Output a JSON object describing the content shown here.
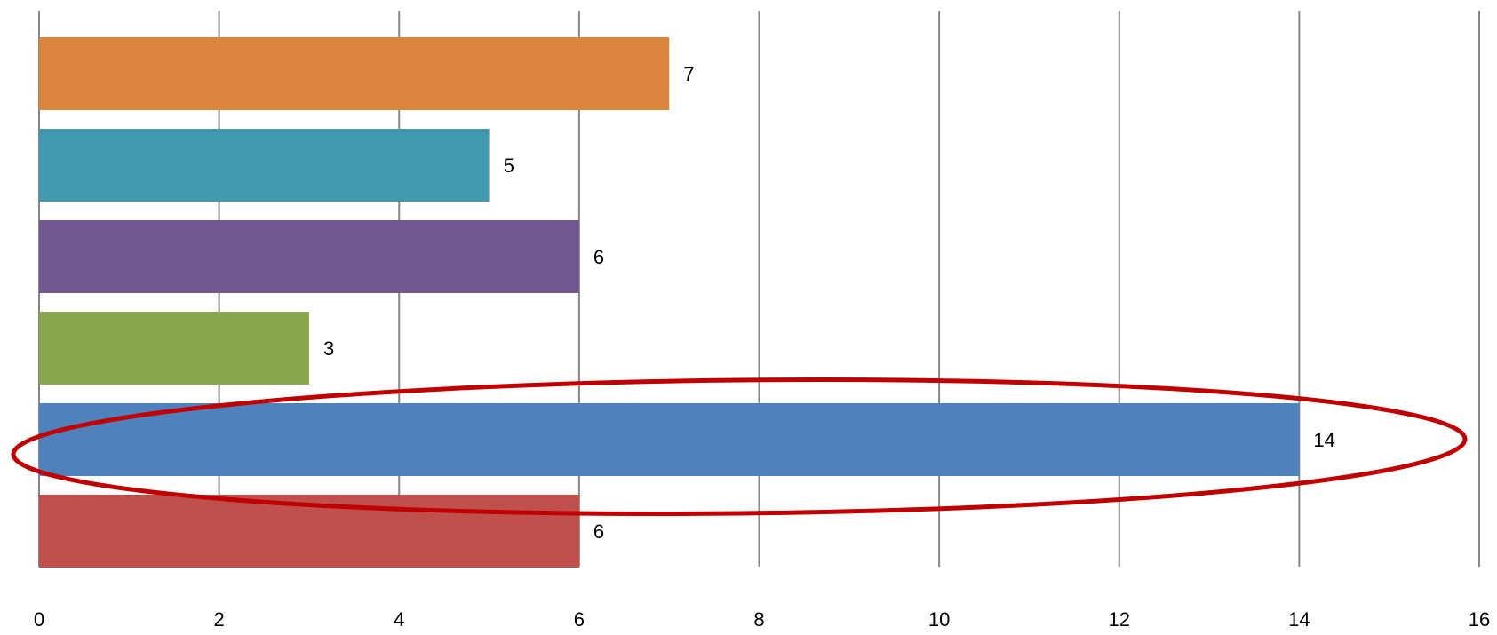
{
  "chart_data": {
    "type": "bar",
    "orientation": "horizontal",
    "values": [
      7,
      5,
      6,
      3,
      14,
      6
    ],
    "colors": [
      "#DB843D",
      "#4298AF",
      "#71588F",
      "#89A54E",
      "#4F81BD",
      "#C0504D"
    ],
    "data_labels": [
      "7",
      "5",
      "6",
      "3",
      "14",
      "6"
    ],
    "xlim": [
      0,
      16
    ],
    "x_ticks": [
      0,
      2,
      4,
      6,
      8,
      10,
      12,
      14,
      16
    ],
    "x_tick_labels": [
      "0",
      "2",
      "4",
      "6",
      "8",
      "10",
      "12",
      "14",
      "16"
    ],
    "grid": "vertical",
    "legend": "none",
    "annotation": {
      "type": "ellipse",
      "highlighted_bar_value": 14,
      "color": "#C00000"
    }
  }
}
